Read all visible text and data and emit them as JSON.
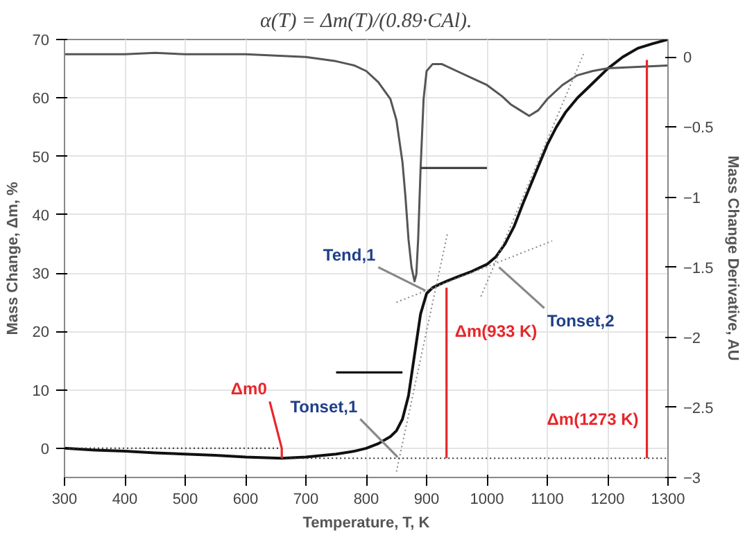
{
  "chart_data": {
    "type": "line",
    "xlabel": "Temperature, T, K",
    "ylabel": "Mass Change, Δm, %",
    "y2label": "Mass Change Derivative, AU",
    "xlim": [
      300,
      1300
    ],
    "xticks": [
      300,
      400,
      500,
      600,
      700,
      800,
      900,
      1000,
      1100,
      1200,
      1300
    ],
    "ylim": [
      -5,
      70
    ],
    "yticks": [
      0,
      10,
      20,
      30,
      40,
      50,
      60,
      70
    ],
    "y2lim": [
      -3,
      0.125
    ],
    "y2ticks": [
      -3,
      -2.5,
      -2,
      -1.5,
      -1,
      -0.5,
      0
    ],
    "grid": true,
    "annotations": [
      "α(T) = Δm(T)/(0.89·CAl).",
      {
        "text": "Tend,1",
        "x": 820,
        "y": 31
      },
      {
        "text": "Tonset,1",
        "x": 790,
        "y": 5
      },
      {
        "text": "Tonset,2",
        "x": 1095,
        "y": 24
      },
      {
        "text": "Δm(933 K)",
        "x": 933,
        "y": 20
      },
      {
        "text": "Δm(1273 K)",
        "x": 1265,
        "y": 5
      },
      {
        "text": "Δm0",
        "x": 640,
        "y": 8
      }
    ],
    "series": [
      {
        "color": "#111111",
        "x": [
          300,
          350,
          400,
          450,
          500,
          550,
          600,
          660,
          700,
          750,
          780,
          800,
          820,
          840,
          850,
          860,
          870,
          880,
          890,
          900,
          910,
          920,
          935,
          950,
          975,
          1000,
          1015,
          1030,
          1045,
          1060,
          1080,
          1100,
          1115,
          1130,
          1150,
          1175,
          1200,
          1225,
          1250,
          1275,
          1300
        ],
        "values": [
          0,
          -0.3,
          -0.5,
          -0.8,
          -1,
          -1.2,
          -1.5,
          -1.7,
          -1.5,
          -1,
          -0.5,
          0,
          0.8,
          2,
          3,
          5,
          9,
          16,
          23,
          26.5,
          27.5,
          28,
          28.7,
          29.3,
          30.3,
          31.5,
          32.8,
          35,
          38,
          42,
          47,
          52,
          55,
          57.5,
          60,
          62.5,
          65,
          67,
          68.5,
          69.3,
          70
        ]
      },
      {
        "axis": "y2",
        "color": "#555555",
        "x": [
          300,
          350,
          400,
          450,
          500,
          550,
          600,
          650,
          700,
          750,
          780,
          800,
          820,
          840,
          850,
          860,
          865,
          870,
          875,
          880,
          883,
          886,
          890,
          895,
          900,
          910,
          925,
          950,
          975,
          1000,
          1025,
          1040,
          1055,
          1070,
          1085,
          1100,
          1125,
          1150,
          1175,
          1200,
          1250,
          1300
        ],
        "values": [
          0.02,
          0.02,
          0.02,
          0.03,
          0.02,
          0.02,
          0.02,
          0.01,
          0.0,
          -0.03,
          -0.06,
          -0.1,
          -0.18,
          -0.3,
          -0.45,
          -0.75,
          -1.0,
          -1.3,
          -1.5,
          -1.6,
          -1.55,
          -1.3,
          -0.8,
          -0.3,
          -0.1,
          -0.05,
          -0.05,
          -0.1,
          -0.15,
          -0.2,
          -0.28,
          -0.34,
          -0.38,
          -0.42,
          -0.38,
          -0.3,
          -0.2,
          -0.13,
          -0.1,
          -0.08,
          -0.07,
          -0.06
        ]
      },
      {
        "color": "#888888",
        "line_style": "dotted",
        "x": [
          850,
          935
        ],
        "values": [
          -4,
          37
        ]
      },
      {
        "color": "#888888",
        "line_style": "dotted",
        "x": [
          850,
          1108
        ],
        "values": [
          25,
          35.5
        ]
      },
      {
        "color": "#888888",
        "line_style": "dotted",
        "x": [
          990,
          1160
        ],
        "values": [
          26,
          67.5
        ]
      },
      {
        "color": "#333333",
        "line_style": "dotted",
        "x": [
          300,
          660
        ],
        "values": [
          0,
          0
        ]
      },
      {
        "color": "#333333",
        "line_style": "dotted",
        "x": [
          660,
          1300
        ],
        "values": [
          -1.7,
          -1.7
        ]
      },
      {
        "color": "#e8262a",
        "x": [
          933,
          933
        ],
        "values": [
          -1.7,
          27.5
        ]
      },
      {
        "color": "#e8262a",
        "x": [
          1265,
          1265
        ],
        "values": [
          -1.7,
          66.5
        ]
      },
      {
        "color": "#444444",
        "x": [
          890,
          1000
        ],
        "values": [
          48,
          48
        ]
      },
      {
        "color": "#111111",
        "x": [
          860,
          750
        ],
        "values": [
          13,
          13
        ]
      },
      {
        "color": "#888888",
        "x": [
          820,
          898
        ],
        "values": [
          31,
          27
        ]
      },
      {
        "color": "#888888",
        "x": [
          790,
          852
        ],
        "values": [
          5,
          -1.5
        ]
      },
      {
        "color": "#888888",
        "x": [
          1095,
          1020
        ],
        "values": [
          24,
          31
        ]
      },
      {
        "color": "#e8262a",
        "x": [
          640,
          660,
          660
        ],
        "values": [
          8,
          0,
          -1.7
        ]
      }
    ]
  }
}
